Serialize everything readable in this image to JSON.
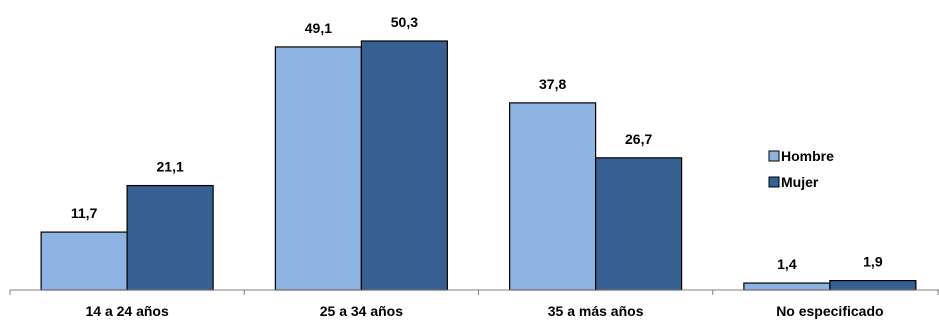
{
  "chart_data": {
    "type": "bar",
    "title": "",
    "xlabel": "",
    "ylabel": "",
    "categories": [
      "14 a 24 años",
      "25 a 34 años",
      "35 a más años",
      "No especificado"
    ],
    "series": [
      {
        "name": "Hombre",
        "values": [
          11.7,
          49.1,
          37.8,
          1.4
        ],
        "labels": [
          "11,7",
          "49,1",
          "37,8",
          "1,4"
        ],
        "color": "#8DB3E2"
      },
      {
        "name": "Mujer",
        "values": [
          21.1,
          50.3,
          26.7,
          1.9
        ],
        "labels": [
          "21,1",
          "50,3",
          "26,7",
          "1,9"
        ],
        "color": "#366092"
      }
    ],
    "ylim": [
      0,
      50.3
    ],
    "y_axis_visible": false,
    "grid": false,
    "legend_position": "right"
  }
}
